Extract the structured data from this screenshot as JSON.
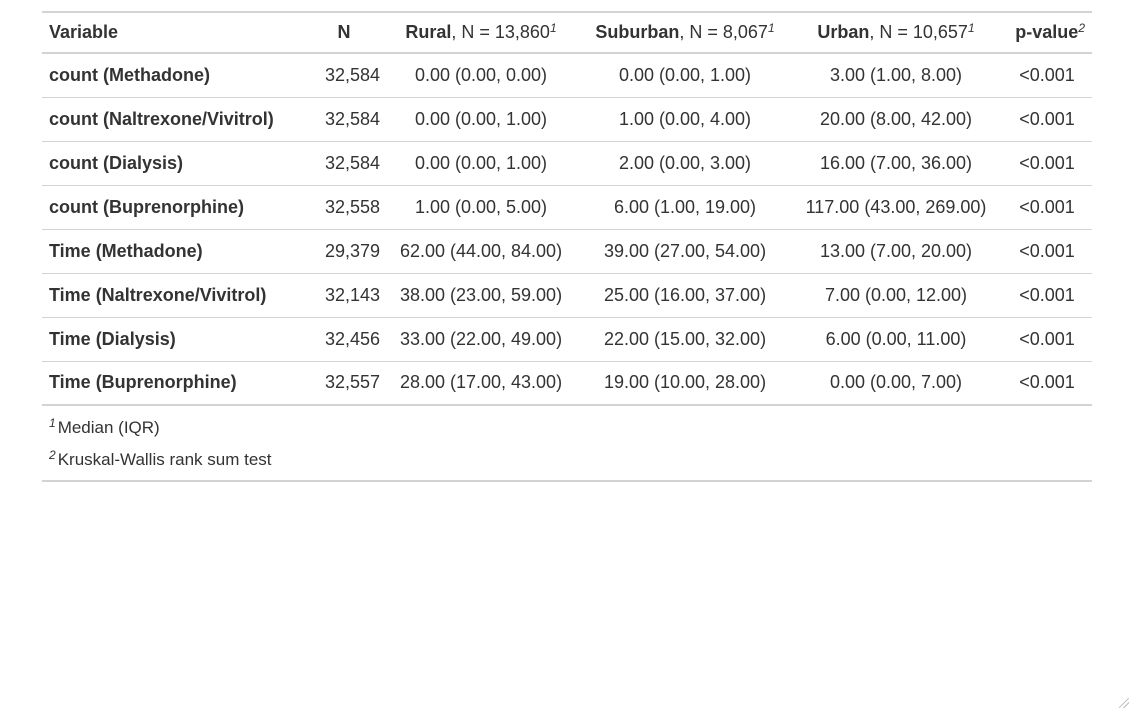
{
  "table": {
    "headers": {
      "variable": "Variable",
      "n": "N",
      "rural": {
        "label": "Rural",
        "detail": ", N = 13,860",
        "mark": "1"
      },
      "suburban": {
        "label": "Suburban",
        "detail": ", N = 8,067",
        "mark": "1"
      },
      "urban": {
        "label": "Urban",
        "detail": ", N = 10,657",
        "mark": "1"
      },
      "pvalue": {
        "label": "p-value",
        "mark": "2"
      }
    },
    "rows": [
      {
        "variable": "count (Methadone)",
        "n": "32,584",
        "rural": "0.00 (0.00, 0.00)",
        "suburban": "0.00 (0.00, 1.00)",
        "urban": "3.00 (1.00, 8.00)",
        "p": "<0.001"
      },
      {
        "variable": "count (Naltrexone/Vivitrol)",
        "n": "32,584",
        "rural": "0.00 (0.00, 1.00)",
        "suburban": "1.00 (0.00, 4.00)",
        "urban": "20.00 (8.00, 42.00)",
        "p": "<0.001"
      },
      {
        "variable": "count (Dialysis)",
        "n": "32,584",
        "rural": "0.00 (0.00, 1.00)",
        "suburban": "2.00 (0.00, 3.00)",
        "urban": "16.00 (7.00, 36.00)",
        "p": "<0.001"
      },
      {
        "variable": "count (Buprenorphine)",
        "n": "32,558",
        "rural": "1.00 (0.00, 5.00)",
        "suburban": "6.00 (1.00, 19.00)",
        "urban": "117.00 (43.00, 269.00)",
        "p": "<0.001"
      },
      {
        "variable": "Time (Methadone)",
        "n": "29,379",
        "rural": "62.00 (44.00, 84.00)",
        "suburban": "39.00 (27.00, 54.00)",
        "urban": "13.00 (7.00, 20.00)",
        "p": "<0.001"
      },
      {
        "variable": "Time (Naltrexone/Vivitrol)",
        "n": "32,143",
        "rural": "38.00 (23.00, 59.00)",
        "suburban": "25.00 (16.00, 37.00)",
        "urban": "7.00 (0.00, 12.00)",
        "p": "<0.001"
      },
      {
        "variable": "Time (Dialysis)",
        "n": "32,456",
        "rural": "33.00 (22.00, 49.00)",
        "suburban": "22.00 (15.00, 32.00)",
        "urban": "6.00 (0.00, 11.00)",
        "p": "<0.001"
      },
      {
        "variable": "Time (Buprenorphine)",
        "n": "32,557",
        "rural": "28.00 (17.00, 43.00)",
        "suburban": "19.00 (10.00, 28.00)",
        "urban": "0.00 (0.00, 7.00)",
        "p": "<0.001"
      }
    ],
    "footnotes": [
      {
        "mark": "1",
        "text": "Median (IQR)"
      },
      {
        "mark": "2",
        "text": "Kruskal-Wallis rank sum test"
      }
    ]
  },
  "icons": {
    "resize_grip": "resize-grip-icon"
  },
  "colors": {
    "text": "#333333",
    "rule": "#d3d3d3",
    "background": "#ffffff"
  }
}
